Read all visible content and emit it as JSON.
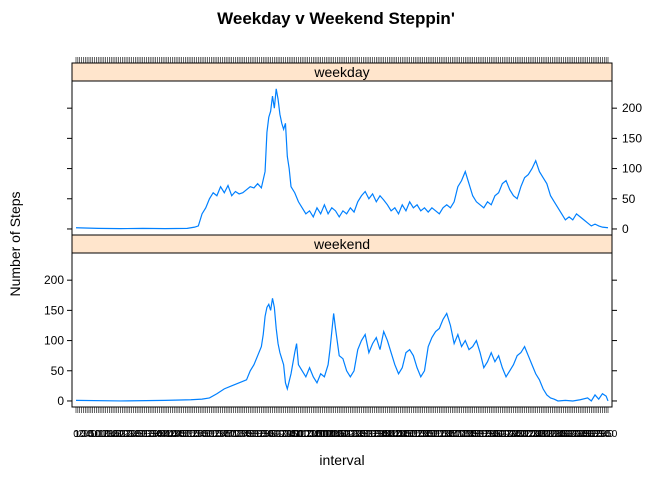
{
  "chart_data": {
    "type": "line",
    "title": "Weekday v Weekend Steppin'",
    "xlabel": "interval",
    "ylabel": "Number of Steps",
    "ylim": [
      -10,
      245
    ],
    "yticks": [
      0,
      50,
      100,
      150,
      200
    ],
    "panel_order": [
      "weekend",
      "weekday"
    ],
    "line_color": "#0080ff",
    "strip_color": "#ffe5cc",
    "x_tick_count": 288,
    "grid": false,
    "panels": [
      {
        "name": "weekday",
        "points": [
          [
            0,
            2
          ],
          [
            12,
            1
          ],
          [
            24,
            0.5
          ],
          [
            36,
            1
          ],
          [
            48,
            0.5
          ],
          [
            60,
            1
          ],
          [
            64,
            3
          ],
          [
            66,
            5
          ],
          [
            68,
            25
          ],
          [
            70,
            35
          ],
          [
            72,
            50
          ],
          [
            74,
            60
          ],
          [
            76,
            55
          ],
          [
            78,
            70
          ],
          [
            80,
            60
          ],
          [
            82,
            72
          ],
          [
            84,
            55
          ],
          [
            86,
            62
          ],
          [
            88,
            58
          ],
          [
            90,
            60
          ],
          [
            92,
            65
          ],
          [
            94,
            70
          ],
          [
            96,
            68
          ],
          [
            98,
            75
          ],
          [
            100,
            68
          ],
          [
            102,
            95
          ],
          [
            103,
            160
          ],
          [
            104,
            185
          ],
          [
            105,
            195
          ],
          [
            106,
            220
          ],
          [
            107,
            200
          ],
          [
            108,
            232
          ],
          [
            109,
            215
          ],
          [
            110,
            190
          ],
          [
            111,
            175
          ],
          [
            112,
            165
          ],
          [
            113,
            175
          ],
          [
            114,
            120
          ],
          [
            115,
            100
          ],
          [
            116,
            70
          ],
          [
            118,
            60
          ],
          [
            120,
            45
          ],
          [
            122,
            35
          ],
          [
            124,
            25
          ],
          [
            126,
            30
          ],
          [
            128,
            20
          ],
          [
            130,
            35
          ],
          [
            132,
            25
          ],
          [
            134,
            40
          ],
          [
            136,
            25
          ],
          [
            138,
            35
          ],
          [
            140,
            30
          ],
          [
            142,
            20
          ],
          [
            144,
            30
          ],
          [
            146,
            25
          ],
          [
            148,
            35
          ],
          [
            150,
            28
          ],
          [
            152,
            45
          ],
          [
            154,
            55
          ],
          [
            156,
            62
          ],
          [
            158,
            50
          ],
          [
            160,
            58
          ],
          [
            162,
            45
          ],
          [
            164,
            55
          ],
          [
            166,
            48
          ],
          [
            168,
            40
          ],
          [
            170,
            30
          ],
          [
            172,
            35
          ],
          [
            174,
            25
          ],
          [
            176,
            40
          ],
          [
            178,
            30
          ],
          [
            180,
            45
          ],
          [
            182,
            35
          ],
          [
            184,
            40
          ],
          [
            186,
            30
          ],
          [
            188,
            35
          ],
          [
            190,
            28
          ],
          [
            192,
            35
          ],
          [
            194,
            30
          ],
          [
            196,
            25
          ],
          [
            198,
            35
          ],
          [
            200,
            40
          ],
          [
            202,
            35
          ],
          [
            204,
            45
          ],
          [
            206,
            70
          ],
          [
            208,
            80
          ],
          [
            210,
            95
          ],
          [
            212,
            75
          ],
          [
            214,
            55
          ],
          [
            216,
            45
          ],
          [
            218,
            40
          ],
          [
            220,
            35
          ],
          [
            222,
            45
          ],
          [
            224,
            40
          ],
          [
            226,
            55
          ],
          [
            228,
            60
          ],
          [
            230,
            75
          ],
          [
            232,
            80
          ],
          [
            234,
            65
          ],
          [
            236,
            55
          ],
          [
            238,
            50
          ],
          [
            240,
            70
          ],
          [
            242,
            85
          ],
          [
            244,
            90
          ],
          [
            246,
            100
          ],
          [
            248,
            113
          ],
          [
            250,
            95
          ],
          [
            252,
            85
          ],
          [
            254,
            75
          ],
          [
            256,
            55
          ],
          [
            258,
            45
          ],
          [
            260,
            35
          ],
          [
            262,
            25
          ],
          [
            264,
            15
          ],
          [
            266,
            20
          ],
          [
            268,
            15
          ],
          [
            270,
            25
          ],
          [
            272,
            20
          ],
          [
            274,
            15
          ],
          [
            276,
            10
          ],
          [
            278,
            5
          ],
          [
            280,
            8
          ],
          [
            282,
            5
          ],
          [
            284,
            3
          ],
          [
            287,
            2
          ]
        ]
      },
      {
        "name": "weekend",
        "points": [
          [
            0,
            1
          ],
          [
            24,
            0
          ],
          [
            48,
            1
          ],
          [
            62,
            2
          ],
          [
            68,
            3
          ],
          [
            72,
            5
          ],
          [
            76,
            12
          ],
          [
            80,
            20
          ],
          [
            84,
            25
          ],
          [
            88,
            30
          ],
          [
            92,
            35
          ],
          [
            94,
            50
          ],
          [
            96,
            60
          ],
          [
            98,
            75
          ],
          [
            100,
            90
          ],
          [
            101,
            110
          ],
          [
            102,
            140
          ],
          [
            103,
            155
          ],
          [
            104,
            160
          ],
          [
            105,
            150
          ],
          [
            106,
            170
          ],
          [
            107,
            155
          ],
          [
            108,
            120
          ],
          [
            109,
            95
          ],
          [
            110,
            80
          ],
          [
            111,
            70
          ],
          [
            112,
            60
          ],
          [
            113,
            30
          ],
          [
            114,
            20
          ],
          [
            116,
            45
          ],
          [
            118,
            80
          ],
          [
            119,
            95
          ],
          [
            120,
            60
          ],
          [
            122,
            50
          ],
          [
            124,
            40
          ],
          [
            126,
            55
          ],
          [
            128,
            40
          ],
          [
            130,
            30
          ],
          [
            132,
            45
          ],
          [
            134,
            40
          ],
          [
            136,
            60
          ],
          [
            137,
            85
          ],
          [
            138,
            115
          ],
          [
            139,
            145
          ],
          [
            140,
            120
          ],
          [
            142,
            75
          ],
          [
            144,
            70
          ],
          [
            146,
            50
          ],
          [
            148,
            40
          ],
          [
            150,
            50
          ],
          [
            152,
            85
          ],
          [
            154,
            100
          ],
          [
            156,
            110
          ],
          [
            158,
            80
          ],
          [
            160,
            95
          ],
          [
            162,
            105
          ],
          [
            164,
            85
          ],
          [
            166,
            115
          ],
          [
            168,
            100
          ],
          [
            170,
            80
          ],
          [
            172,
            60
          ],
          [
            174,
            45
          ],
          [
            176,
            55
          ],
          [
            178,
            80
          ],
          [
            180,
            85
          ],
          [
            182,
            75
          ],
          [
            184,
            55
          ],
          [
            186,
            40
          ],
          [
            188,
            50
          ],
          [
            190,
            90
          ],
          [
            192,
            105
          ],
          [
            194,
            115
          ],
          [
            196,
            120
          ],
          [
            198,
            135
          ],
          [
            200,
            145
          ],
          [
            202,
            125
          ],
          [
            204,
            95
          ],
          [
            206,
            110
          ],
          [
            208,
            90
          ],
          [
            210,
            100
          ],
          [
            212,
            85
          ],
          [
            214,
            90
          ],
          [
            216,
            100
          ],
          [
            218,
            80
          ],
          [
            220,
            55
          ],
          [
            222,
            65
          ],
          [
            224,
            80
          ],
          [
            226,
            65
          ],
          [
            228,
            75
          ],
          [
            230,
            55
          ],
          [
            232,
            40
          ],
          [
            234,
            50
          ],
          [
            236,
            60
          ],
          [
            238,
            75
          ],
          [
            240,
            80
          ],
          [
            242,
            90
          ],
          [
            244,
            75
          ],
          [
            246,
            60
          ],
          [
            248,
            45
          ],
          [
            250,
            35
          ],
          [
            252,
            20
          ],
          [
            254,
            10
          ],
          [
            256,
            5
          ],
          [
            258,
            3
          ],
          [
            260,
            0
          ],
          [
            264,
            1
          ],
          [
            268,
            0
          ],
          [
            272,
            2
          ],
          [
            276,
            5
          ],
          [
            278,
            0
          ],
          [
            280,
            10
          ],
          [
            282,
            3
          ],
          [
            284,
            12
          ],
          [
            286,
            8
          ],
          [
            287,
            0
          ]
        ]
      }
    ]
  }
}
